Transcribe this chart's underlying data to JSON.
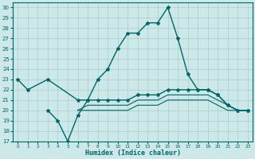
{
  "xlabel": "Humidex (Indice chaleur)",
  "x": [
    0,
    1,
    2,
    3,
    4,
    5,
    6,
    7,
    8,
    9,
    10,
    11,
    12,
    13,
    14,
    15,
    16,
    17,
    18,
    19,
    20,
    21,
    22,
    23
  ],
  "line_main": [
    23,
    22,
    null,
    null,
    null,
    null,
    null,
    null,
    null,
    null,
    null,
    null,
    null,
    null,
    null,
    null,
    null,
    null,
    null,
    null,
    null,
    null,
    null,
    null
  ],
  "line_peak": [
    23,
    22,
    null,
    23,
    null,
    null,
    21,
    21,
    23,
    24,
    26,
    27.5,
    27.5,
    28.5,
    28.5,
    30,
    27,
    23.5,
    22,
    22,
    21.5,
    20.5,
    20,
    20
  ],
  "line2": [
    null,
    null,
    null,
    20,
    19,
    17,
    19.5,
    21,
    21,
    21,
    21,
    21,
    21.5,
    21.5,
    21.5,
    22,
    22,
    22,
    22,
    22,
    21.5,
    20.5,
    20,
    20
  ],
  "line3": [
    null,
    null,
    null,
    null,
    null,
    null,
    20,
    20.5,
    20.5,
    20.5,
    20.5,
    20.5,
    21,
    21,
    21,
    21.5,
    21.5,
    21.5,
    21.5,
    21.5,
    21,
    20.5,
    20,
    20
  ],
  "line4": [
    null,
    null,
    null,
    null,
    null,
    null,
    20,
    20,
    20,
    20,
    20,
    20,
    20.5,
    20.5,
    20.5,
    21,
    21,
    21,
    21,
    21,
    20.5,
    20,
    20,
    20
  ],
  "bg_color": "#cce8e8",
  "line_color": "#006666",
  "grid_color": "#aacccc",
  "ylim": [
    17,
    30.5
  ],
  "yticks": [
    17,
    18,
    19,
    20,
    21,
    22,
    23,
    24,
    25,
    26,
    27,
    28,
    29,
    30
  ],
  "xticks": [
    0,
    1,
    2,
    3,
    4,
    5,
    6,
    7,
    8,
    9,
    10,
    11,
    12,
    13,
    14,
    15,
    16,
    17,
    18,
    19,
    20,
    21,
    22,
    23
  ]
}
